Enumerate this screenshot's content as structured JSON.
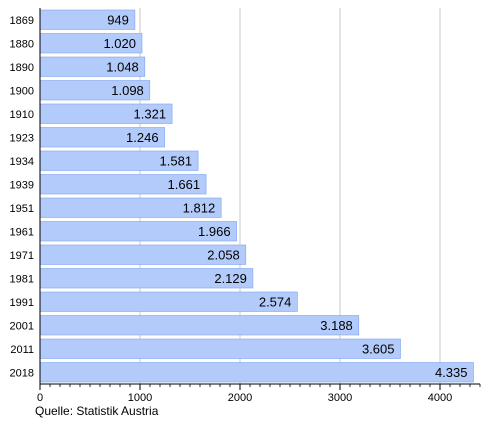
{
  "chart_data": {
    "type": "bar",
    "orientation": "horizontal",
    "categories": [
      "1869",
      "1880",
      "1890",
      "1900",
      "1910",
      "1923",
      "1934",
      "1939",
      "1951",
      "1961",
      "1971",
      "1981",
      "1991",
      "2001",
      "2011",
      "2018"
    ],
    "values": [
      949,
      1020,
      1048,
      1098,
      1321,
      1246,
      1581,
      1661,
      1812,
      1966,
      2058,
      2129,
      2574,
      3188,
      3605,
      4335
    ],
    "value_labels": [
      "949",
      "1.020",
      "1.048",
      "1.098",
      "1.321",
      "1.246",
      "1.581",
      "1.661",
      "1.812",
      "1.966",
      "2.058",
      "2.129",
      "2.574",
      "3.188",
      "3.605",
      "4.335"
    ],
    "x_ticks": [
      0,
      1000,
      2000,
      3000,
      4000
    ],
    "xlim": [
      0,
      4400
    ],
    "grid": "vertical",
    "title": "",
    "xlabel": "",
    "ylabel": "",
    "bar_color": "#b3cbfa",
    "bar_edge_color": "#7ea3ef"
  },
  "source_label": "Quelle: Statistik Austria"
}
